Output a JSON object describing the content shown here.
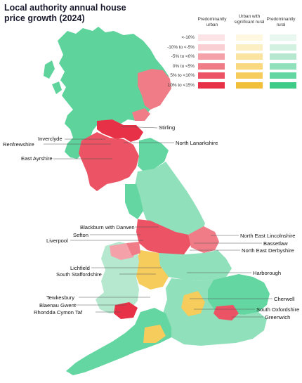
{
  "title": "Local authority annual house price growth (2024)",
  "legend": {
    "columns": [
      "Predominantly urban",
      "Urban with significant rural",
      "Predominantly rural"
    ],
    "rows": [
      {
        "label": "<-10%",
        "colors": [
          "#fbe3e6",
          "#fff7e0",
          "#e8f7ef"
        ]
      },
      {
        "label": "-10% to <-5%",
        "colors": [
          "#f9cfd3",
          "#fdefc4",
          "#d3f1e1"
        ]
      },
      {
        "label": "-5% to <0%",
        "colors": [
          "#f4a1aa",
          "#fbe3a0",
          "#b5e8cf"
        ]
      },
      {
        "label": "0% to <5%",
        "colors": [
          "#f07c88",
          "#f9d87f",
          "#8fe0bb"
        ]
      },
      {
        "label": "5% to <10%",
        "colors": [
          "#ec5364",
          "#f6cc5c",
          "#64d6a1"
        ]
      },
      {
        "label": "10% to <15%",
        "colors": [
          "#e63146",
          "#f2bf3a",
          "#3ecb88"
        ]
      }
    ]
  },
  "places": {
    "stirling": "Stirling",
    "inverclyde": "Inverclyde",
    "renfrewshire": "Renfrewshire",
    "north_lanarkshire": "North Lanarkshire",
    "east_ayrshire": "East Ayrshire",
    "blackburn": "Blackburn with Darwen",
    "sefton": "Sefton",
    "liverpool": "Liverpool",
    "ne_lincolnshire": "North East Lincolnshire",
    "bassetlaw": "Bassetlaw",
    "ne_derbyshire": "North East Derbyshire",
    "lichfield": "Lichfield",
    "south_staffordshire": "South Staffordshire",
    "harborough": "Harborough",
    "tewkesbury": "Tewkesbury",
    "blaenau_gwent": "Blaenau Gwent",
    "rhondda": "Rhondda Cymon Taf",
    "cherwell": "Cherwell",
    "south_oxfordshire": "South Oxfordshire",
    "greenwich": "Greenwich"
  }
}
